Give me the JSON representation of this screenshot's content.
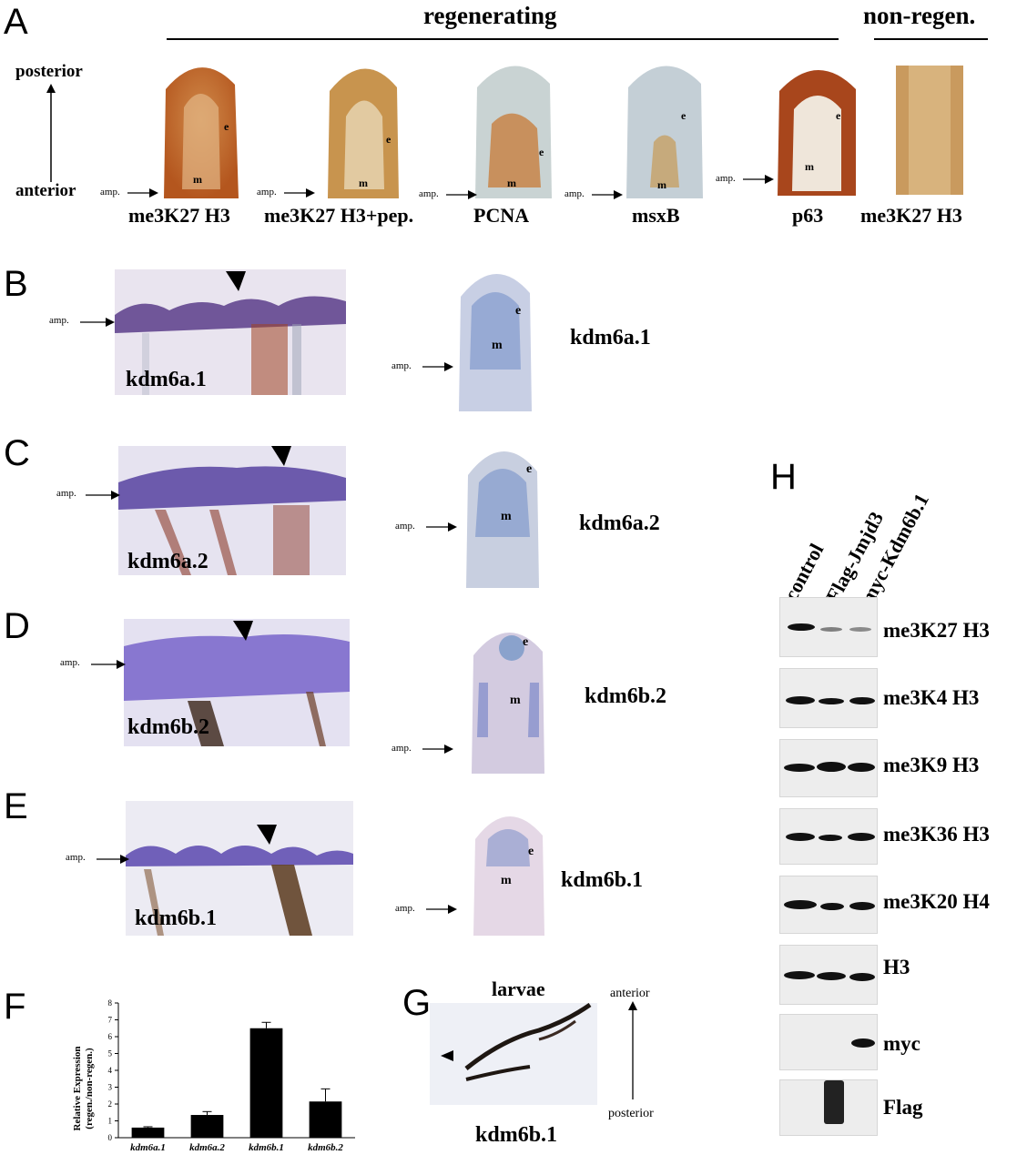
{
  "panels": {
    "A": {
      "letter": "A",
      "header_regen": "regenerating",
      "header_nonregen": "non-regen.",
      "axis_top": "posterior",
      "axis_bottom": "anterior",
      "amp": "amp.",
      "e": "e",
      "m": "m",
      "labels": [
        "me3K27 H3",
        "me3K27 H3+pep.",
        "PCNA",
        "msxB",
        "p63",
        "me3K27 H3"
      ]
    },
    "B": {
      "letter": "B",
      "gene": "kdm6a.1",
      "amp": "amp.",
      "e": "e",
      "m": "m"
    },
    "C": {
      "letter": "C",
      "gene": "kdm6a.2",
      "amp": "amp.",
      "e": "e",
      "m": "m"
    },
    "D": {
      "letter": "D",
      "gene": "kdm6b.2",
      "amp": "amp.",
      "e": "e",
      "m": "m"
    },
    "E": {
      "letter": "E",
      "gene": "kdm6b.1",
      "amp": "amp.",
      "e": "e",
      "m": "m"
    },
    "F": {
      "letter": "F"
    },
    "G": {
      "letter": "G",
      "title": "larvae",
      "gene": "kdm6b.1",
      "anterior": "anterior",
      "posterior": "posterior"
    },
    "H": {
      "letter": "H",
      "lanes": [
        "control",
        "Flag-Jmjd3",
        "myc-Kdm6b.1"
      ],
      "blots": [
        "me3K27 H3",
        "me3K4 H3",
        "me3K9 H3",
        "me3K36 H3",
        "me3K20 H4",
        "H3",
        "myc",
        "Flag"
      ]
    }
  },
  "chart_data": {
    "type": "bar",
    "categories": [
      "kdm6a.1",
      "kdm6a.2",
      "kdm6b.1",
      "kdm6b.2"
    ],
    "values": [
      0.6,
      1.35,
      6.5,
      2.15
    ],
    "errors": [
      0.05,
      0.2,
      0.35,
      0.75
    ],
    "ylabel": "Relative Expression (regen./non-regen.)",
    "ylabel_line1": "Relative Expression",
    "ylabel_line2": "(regen./non-regen.)",
    "ylim": [
      0,
      8
    ],
    "yticks": [
      "0",
      "1",
      "2",
      "3",
      "4",
      "5",
      "6",
      "7",
      "8"
    ],
    "bar_color": "#000000"
  }
}
